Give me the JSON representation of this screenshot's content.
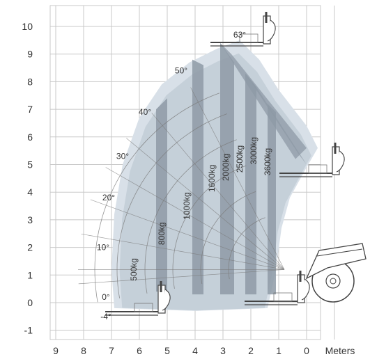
{
  "chart_data": {
    "type": "area",
    "title": "",
    "x_unit_label": "Meters",
    "x_ticks": [
      "9",
      "8",
      "7",
      "6",
      "5",
      "4",
      "3",
      "2",
      "1",
      "0"
    ],
    "y_ticks": [
      "10",
      "9",
      "8",
      "7",
      "6",
      "5",
      "4",
      "3",
      "2",
      "1",
      "0",
      "-1"
    ],
    "xlim": [
      9.6,
      -1.9
    ],
    "ylim": [
      -1.2,
      11.0
    ],
    "grid": true,
    "boom_angles": [
      {
        "label": "63°",
        "x": 2.4,
        "y": 9.6
      },
      {
        "label": "50°",
        "x": 4.5,
        "y": 8.3
      },
      {
        "label": "40°",
        "x": 5.8,
        "y": 6.8
      },
      {
        "label": "30°",
        "x": 6.6,
        "y": 5.2
      },
      {
        "label": "20°",
        "x": 7.1,
        "y": 3.7
      },
      {
        "label": "10°",
        "x": 7.3,
        "y": 1.9
      },
      {
        "label": "0°",
        "x": 7.2,
        "y": 0.1
      },
      {
        "label": "-4°",
        "x": 7.2,
        "y": -0.6
      }
    ],
    "load_zones": [
      {
        "label": "500kg",
        "label_x": 6.1,
        "label_y": 1.2
      },
      {
        "label": "800kg",
        "label_x": 5.1,
        "label_y": 2.5
      },
      {
        "label": "1000kg",
        "label_x": 4.2,
        "label_y": 3.5
      },
      {
        "label": "1600kg",
        "label_x": 3.3,
        "label_y": 4.5
      },
      {
        "label": "2000kg",
        "label_x": 2.8,
        "label_y": 4.9
      },
      {
        "label": "2500kg",
        "label_x": 2.3,
        "label_y": 5.2
      },
      {
        "label": "3000kg",
        "label_x": 1.8,
        "label_y": 5.5
      },
      {
        "label": "3600kg",
        "label_x": 1.3,
        "label_y": 5.1
      }
    ],
    "envelope": [
      [
        2.4,
        9.5
      ],
      [
        3.2,
        9.2
      ],
      [
        4.2,
        8.7
      ],
      [
        5.2,
        7.9
      ],
      [
        6.0,
        6.7
      ],
      [
        6.6,
        5.0
      ],
      [
        6.9,
        3.2
      ],
      [
        7.0,
        1.2
      ],
      [
        6.9,
        -0.2
      ],
      [
        4.0,
        -0.3
      ],
      [
        1.4,
        -0.2
      ],
      [
        1.1,
        1.2
      ],
      [
        0.9,
        2.7
      ],
      [
        0.6,
        3.8
      ],
      [
        0.0,
        4.9
      ],
      [
        -0.4,
        5.6
      ],
      [
        0.0,
        6.4
      ],
      [
        1.0,
        7.7
      ],
      [
        1.7,
        8.8
      ],
      [
        2.4,
        9.5
      ]
    ],
    "dark_bands": [
      [
        [
          5.0,
          0.4
        ],
        [
          5.0,
          7.4
        ],
        [
          5.4,
          7.0
        ],
        [
          5.4,
          0.4
        ]
      ],
      [
        [
          4.1,
          0.3
        ],
        [
          4.1,
          8.8
        ],
        [
          3.7,
          8.6
        ],
        [
          3.7,
          0.3
        ]
      ],
      [
        [
          3.1,
          0.3
        ],
        [
          3.1,
          9.4
        ],
        [
          2.6,
          8.7
        ],
        [
          2.6,
          0.3
        ]
      ],
      [
        [
          2.2,
          0.3
        ],
        [
          2.2,
          8.3
        ],
        [
          1.8,
          7.8
        ],
        [
          1.8,
          0.3
        ]
      ],
      [
        [
          1.4,
          0.3
        ],
        [
          1.4,
          7.2
        ],
        [
          1.1,
          6.9
        ],
        [
          1.1,
          0.3
        ]
      ]
    ],
    "colors": {
      "envelope_light": "#d8e0e8",
      "envelope_mid": "#b9c4cf",
      "band_dark": "#8e9aa6",
      "grid": "#c8c8c8",
      "arc": "#7a7a7a",
      "text": "#333333"
    }
  }
}
